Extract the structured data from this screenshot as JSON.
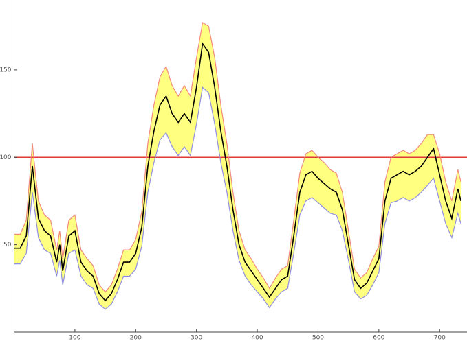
{
  "chart_data": {
    "type": "band",
    "x": [
      0,
      10,
      20,
      25,
      30,
      35,
      40,
      50,
      60,
      70,
      75,
      80,
      90,
      100,
      110,
      120,
      130,
      140,
      150,
      160,
      170,
      180,
      190,
      200,
      210,
      220,
      230,
      240,
      250,
      260,
      270,
      280,
      290,
      300,
      310,
      320,
      330,
      340,
      350,
      360,
      370,
      380,
      390,
      400,
      410,
      420,
      430,
      440,
      450,
      460,
      470,
      480,
      490,
      500,
      510,
      520,
      530,
      540,
      550,
      560,
      570,
      580,
      590,
      600,
      610,
      620,
      630,
      640,
      650,
      660,
      670,
      680,
      690,
      700,
      710,
      720,
      730,
      735
    ],
    "series": [
      {
        "color": "#f08a80",
        "values": [
          56,
          56,
          64,
          86,
          108,
          91,
          75,
          67,
          64,
          47,
          58,
          42,
          64,
          67,
          47,
          42,
          38,
          27,
          23,
          27,
          36,
          47,
          47,
          53,
          69,
          108,
          130,
          146,
          152,
          141,
          135,
          141,
          135,
          157,
          177,
          175,
          157,
          130,
          108,
          80,
          58,
          47,
          42,
          36,
          31,
          25,
          31,
          36,
          38,
          64,
          91,
          102,
          104,
          100,
          97,
          93,
          91,
          80,
          58,
          36,
          31,
          34,
          42,
          49,
          86,
          100,
          102,
          104,
          102,
          104,
          108,
          113,
          113,
          102,
          86,
          75,
          93,
          86
        ]
      },
      {
        "color": "#8f8fe0",
        "values": [
          39,
          39,
          45,
          62,
          80,
          67,
          54,
          47,
          45,
          32,
          41,
          27,
          45,
          47,
          32,
          27,
          25,
          16,
          13,
          16,
          23,
          32,
          32,
          36,
          49,
          80,
          97,
          110,
          114,
          106,
          101,
          106,
          101,
          119,
          140,
          137,
          119,
          97,
          80,
          58,
          41,
          32,
          27,
          23,
          19,
          14,
          19,
          23,
          25,
          45,
          67,
          75,
          77,
          74,
          71,
          68,
          67,
          58,
          41,
          23,
          19,
          21,
          27,
          34,
          62,
          74,
          75,
          77,
          75,
          77,
          80,
          84,
          88,
          75,
          62,
          54,
          68,
          62
        ]
      },
      {
        "color": "#000000",
        "values": [
          48,
          48,
          55,
          75,
          95,
          80,
          65,
          58,
          55,
          40,
          50,
          35,
          55,
          58,
          40,
          35,
          32,
          22,
          18,
          22,
          30,
          40,
          40,
          45,
          60,
          95,
          115,
          130,
          135,
          125,
          120,
          125,
          120,
          140,
          165,
          160,
          140,
          115,
          95,
          70,
          50,
          40,
          35,
          30,
          25,
          20,
          25,
          30,
          32,
          55,
          80,
          90,
          92,
          88,
          85,
          82,
          80,
          70,
          50,
          30,
          25,
          28,
          35,
          42,
          75,
          88,
          90,
          92,
          90,
          92,
          95,
          100,
          105,
          90,
          75,
          65,
          82,
          75
        ]
      }
    ],
    "fill": "#ffff80",
    "hline": {
      "value": 100,
      "color": "#e03a3a"
    },
    "xlim": [
      0,
      745
    ],
    "xticks": [
      100,
      200,
      300,
      400,
      500,
      600,
      700
    ],
    "ylim": [
      0,
      190
    ],
    "yticks": [
      50,
      100,
      150
    ]
  }
}
